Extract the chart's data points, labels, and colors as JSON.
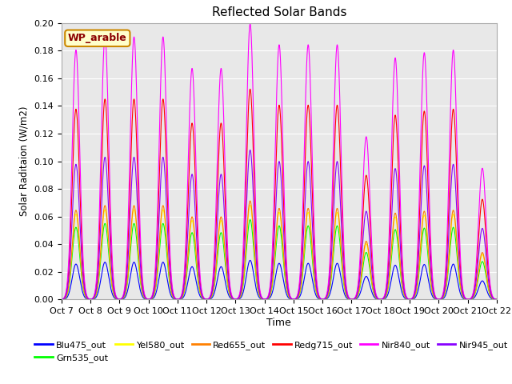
{
  "title": "Reflected Solar Bands",
  "xlabel": "Time",
  "ylabel": "Solar Raditaion (W/m2)",
  "annotation": "WP_arable",
  "ylim": [
    0,
    0.2
  ],
  "yticks": [
    0.0,
    0.02,
    0.04,
    0.06,
    0.08,
    0.1,
    0.12,
    0.14,
    0.16,
    0.18,
    0.2
  ],
  "x_tick_labels": [
    "Oct 7",
    "Oct 8",
    "Oct 9",
    "Oct 10",
    "Oct 11",
    "Oct 12",
    "Oct 13",
    "Oct 14",
    "Oct 15",
    "Oct 16",
    "Oct 17",
    "Oct 18",
    "Oct 19",
    "Oct 20",
    "Oct 21",
    "Oct 22"
  ],
  "series": [
    {
      "name": "Blu475_out",
      "color": "#0000ff",
      "peak_scale": 0.027
    },
    {
      "name": "Grn535_out",
      "color": "#00ff00",
      "peak_scale": 0.055
    },
    {
      "name": "Yel580_out",
      "color": "#ffff00",
      "peak_scale": 0.065
    },
    {
      "name": "Red655_out",
      "color": "#ff8000",
      "peak_scale": 0.068
    },
    {
      "name": "Redg715_out",
      "color": "#ff0000",
      "peak_scale": 0.145
    },
    {
      "name": "Nir840_out",
      "color": "#ff00ff",
      "peak_scale": 0.19
    },
    {
      "name": "Nir945_out",
      "color": "#8800ff",
      "peak_scale": 0.103
    }
  ],
  "day_factors": [
    0.95,
    1.0,
    1.0,
    1.0,
    0.88,
    0.88,
    1.05,
    0.97,
    0.97,
    0.97,
    0.62,
    0.92,
    0.94,
    0.95,
    0.5
  ],
  "bg_color": "#e8e8e8",
  "fig_width": 6.4,
  "fig_height": 4.8,
  "title_fontsize": 11,
  "legend_fontsize": 8,
  "tick_fontsize": 8
}
